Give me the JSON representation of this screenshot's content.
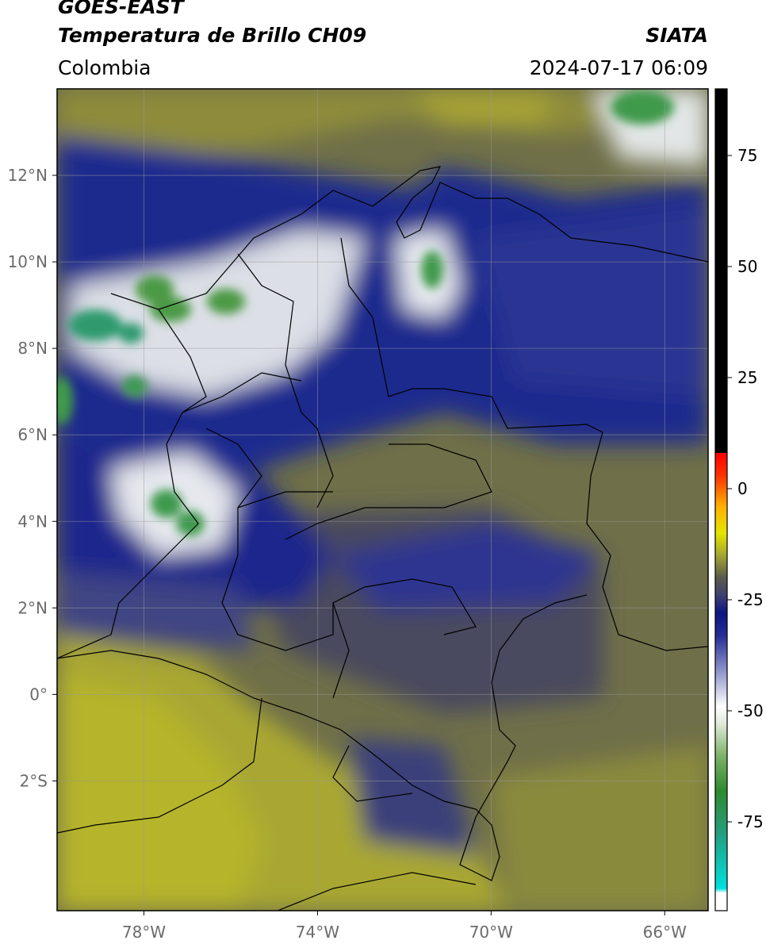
{
  "header": {
    "satellite": "GOES-EAST",
    "product": "Temperatura de Brillo CH09",
    "org": "SIATA",
    "region": "Colombia",
    "datetime": "2024-07-17 06:09"
  },
  "map": {
    "lon_range": [
      -80,
      -65
    ],
    "lat_range": [
      -5,
      14
    ],
    "lon_ticks": [
      {
        "value": -78,
        "label": "78°W"
      },
      {
        "value": -74,
        "label": "74°W"
      },
      {
        "value": -70,
        "label": "70°W"
      },
      {
        "value": -66,
        "label": "66°W"
      }
    ],
    "lat_ticks": [
      {
        "value": 12,
        "label": "12°N"
      },
      {
        "value": 10,
        "label": "10°N"
      },
      {
        "value": 8,
        "label": "8°N"
      },
      {
        "value": 6,
        "label": "6°N"
      },
      {
        "value": 4,
        "label": "4°N"
      },
      {
        "value": 2,
        "label": "2°N"
      },
      {
        "value": 0,
        "label": "0°"
      },
      {
        "value": -2,
        "label": "2°S"
      }
    ],
    "grid": true
  },
  "colorbar": {
    "range": [
      -95,
      90
    ],
    "ticks": [
      {
        "value": 75,
        "label": "75"
      },
      {
        "value": 50,
        "label": "50"
      },
      {
        "value": 25,
        "label": "25"
      },
      {
        "value": 0,
        "label": "0"
      },
      {
        "value": -25,
        "label": "-25"
      },
      {
        "value": -50,
        "label": "-50"
      },
      {
        "value": -75,
        "label": "-75"
      }
    ],
    "stops": [
      {
        "value": -95,
        "color": "#ffffff"
      },
      {
        "value": -91,
        "color": "#ffffff"
      },
      {
        "value": -90,
        "color": "#00e0e0"
      },
      {
        "value": -78,
        "color": "#23a082"
      },
      {
        "value": -68,
        "color": "#2e8a2e"
      },
      {
        "value": -60,
        "color": "#7fb36a"
      },
      {
        "value": -53,
        "color": "#dfe9d8"
      },
      {
        "value": -49,
        "color": "#ffffff"
      },
      {
        "value": -42,
        "color": "#9aa0d0"
      },
      {
        "value": -33,
        "color": "#262c94"
      },
      {
        "value": -28,
        "color": "#0d1680"
      },
      {
        "value": -24,
        "color": "#3e4170"
      },
      {
        "value": -20,
        "color": "#5b5b4c"
      },
      {
        "value": -15,
        "color": "#a5a532"
      },
      {
        "value": -10,
        "color": "#e5e500"
      },
      {
        "value": -4,
        "color": "#ffb000"
      },
      {
        "value": 3,
        "color": "#ff3000"
      },
      {
        "value": 8,
        "color": "#ff0000"
      },
      {
        "value": 8.1,
        "color": "#000000"
      },
      {
        "value": 90,
        "color": "#000000"
      }
    ]
  }
}
